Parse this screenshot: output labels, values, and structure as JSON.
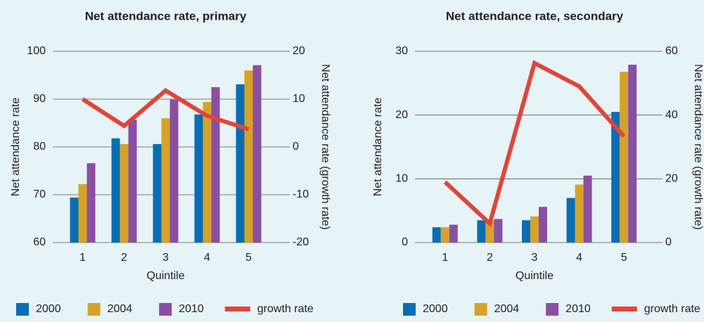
{
  "chart_data": [
    {
      "type": "bar",
      "title": "Net attendance rate, primary",
      "xlabel": "Quintile",
      "ylabel": "Net attendance rate",
      "y2label": "Net attendance rate (growth rate)",
      "categories": [
        "1",
        "2",
        "3",
        "4",
        "5"
      ],
      "series": [
        {
          "name": "2000",
          "color": "#0a6db3",
          "values": [
            69.4,
            81.8,
            80.6,
            86.8,
            93.1
          ]
        },
        {
          "name": "2004",
          "color": "#d6a329",
          "values": [
            72.2,
            80.6,
            86,
            89.4,
            96
          ]
        },
        {
          "name": "2010",
          "color": "#8a4fa1",
          "values": [
            76.6,
            85.7,
            89.9,
            92.5,
            97.1
          ]
        },
        {
          "name": "growth rate",
          "color": "#e0453a",
          "axis": "y2",
          "values": [
            10,
            4.4,
            11.8,
            6.5,
            3.7
          ]
        }
      ],
      "ylim": [
        60,
        100
      ],
      "yticks": [
        60,
        70,
        80,
        90,
        100
      ],
      "y2lim": [
        -20,
        20
      ],
      "y2ticks": [
        -20,
        -10,
        0,
        10,
        20
      ],
      "grid": true,
      "legend": "bottom"
    },
    {
      "type": "bar",
      "title": "Net attendance rate, secondary",
      "xlabel": "Quintile",
      "ylabel": "Net attendance rate",
      "y2label": "Net attendance rate (growth rate)",
      "categories": [
        "1",
        "2",
        "3",
        "4",
        "5"
      ],
      "series": [
        {
          "name": "2000",
          "color": "#0a6db3",
          "values": [
            2.4,
            3.5,
            3.5,
            7,
            20.5
          ]
        },
        {
          "name": "2004",
          "color": "#d6a329",
          "values": [
            2.4,
            3.5,
            4.1,
            9.1,
            26.8
          ]
        },
        {
          "name": "2010",
          "color": "#8a4fa1",
          "values": [
            2.8,
            3.7,
            5.6,
            10.5,
            27.9
          ]
        },
        {
          "name": "growth rate",
          "color": "#e0453a",
          "axis": "y2",
          "values": [
            19,
            6,
            56.3,
            49,
            33.3
          ]
        }
      ],
      "ylim": [
        0,
        30
      ],
      "yticks": [
        0,
        10,
        20,
        30
      ],
      "y2lim": [
        0,
        60
      ],
      "y2ticks": [
        0,
        20,
        40,
        60
      ],
      "grid": true,
      "legend": "bottom"
    }
  ]
}
